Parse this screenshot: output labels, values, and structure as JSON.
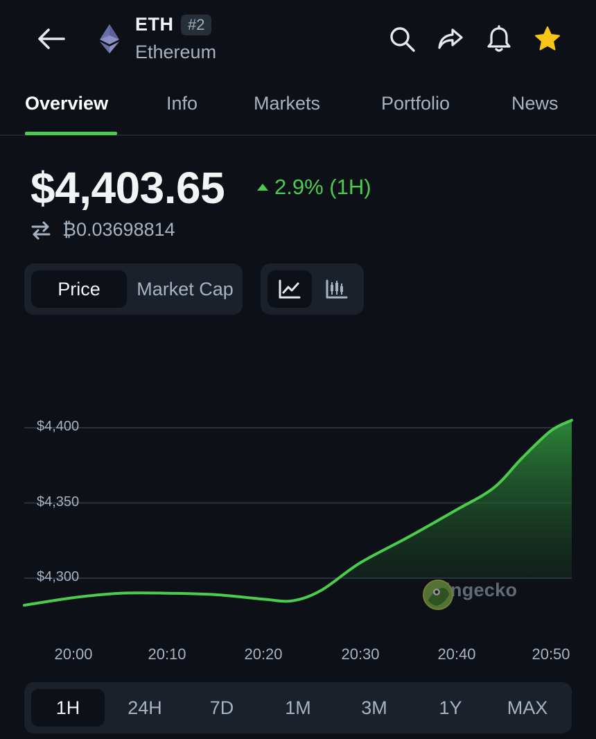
{
  "header": {
    "symbol": "ETH",
    "rank": "#2",
    "name": "Ethereum",
    "icons": [
      "back-arrow-icon",
      "ethereum-logo-icon",
      "search-icon",
      "share-icon",
      "bell-icon",
      "star-icon"
    ]
  },
  "tabs": [
    {
      "label": "Overview",
      "active": true
    },
    {
      "label": "Info",
      "active": false
    },
    {
      "label": "Markets",
      "active": false
    },
    {
      "label": "Portfolio",
      "active": false
    },
    {
      "label": "News",
      "active": false
    }
  ],
  "price": {
    "value": "$4,403.65",
    "change": "2.9% (1H)",
    "change_direction": "up",
    "btc_value": "₿0.03698814"
  },
  "chart_toggle": {
    "price_label": "Price",
    "marketcap_label": "Market Cap",
    "selected": "Price"
  },
  "chart_type_toggle": {
    "selected": "line",
    "options": [
      "line-chart-icon",
      "candlestick-chart-icon"
    ]
  },
  "watermark": "coingecko",
  "chart_data": {
    "type": "area",
    "x": [
      "20:00",
      "20:10",
      "20:20",
      "20:30",
      "20:40",
      "20:50"
    ],
    "y_ticks": [
      "$4,400",
      "$4,350",
      "$4,300"
    ],
    "ylim": [
      4300,
      4400
    ],
    "points": [
      {
        "t": "19:55",
        "v": 4282
      },
      {
        "t": "20:00",
        "v": 4287
      },
      {
        "t": "20:05",
        "v": 4290
      },
      {
        "t": "20:10",
        "v": 4290
      },
      {
        "t": "20:15",
        "v": 4289
      },
      {
        "t": "20:20",
        "v": 4286
      },
      {
        "t": "20:23",
        "v": 4285
      },
      {
        "t": "20:26",
        "v": 4292
      },
      {
        "t": "20:30",
        "v": 4310
      },
      {
        "t": "20:35",
        "v": 4327
      },
      {
        "t": "20:40",
        "v": 4345
      },
      {
        "t": "20:44",
        "v": 4360
      },
      {
        "t": "20:47",
        "v": 4380
      },
      {
        "t": "20:50",
        "v": 4398
      },
      {
        "t": "20:52",
        "v": 4405
      }
    ],
    "line_color": "#4bcc4e",
    "grid": true
  },
  "ranges": [
    {
      "label": "1H",
      "active": true
    },
    {
      "label": "24H",
      "active": false
    },
    {
      "label": "7D",
      "active": false
    },
    {
      "label": "1M",
      "active": false
    },
    {
      "label": "3M",
      "active": false
    },
    {
      "label": "1Y",
      "active": false
    },
    {
      "label": "MAX",
      "active": false
    }
  ],
  "colors": {
    "background": "#0d1117",
    "accent_green": "#4bcc4e",
    "favorite_star": "#f5c518",
    "panel": "#1b212a"
  }
}
